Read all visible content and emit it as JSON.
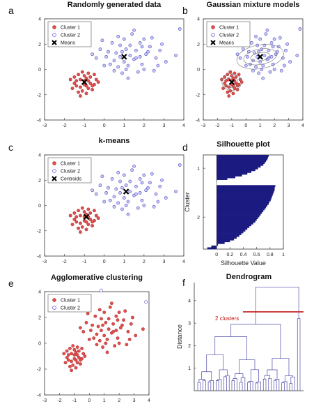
{
  "colors": {
    "cluster1": "#e05050",
    "cluster2": "#5050d0",
    "silhouette_fill": "#1a1a80",
    "cut_line": "#c01818",
    "dendro": "#4a4aa8"
  },
  "chart_data": [
    {
      "type": "scatter",
      "panel_label": "a",
      "title": "Randomly generated data",
      "xlim": [
        -3,
        4
      ],
      "ylim": [
        -4,
        4
      ],
      "xticks": [
        "-3",
        "-2",
        "-1",
        "0",
        "1",
        "2",
        "3",
        "4"
      ],
      "yticks": [
        "-4",
        "-2",
        "0",
        "2",
        "4"
      ],
      "legend": [
        "Cluster 1",
        "Cluster 2",
        "Means"
      ],
      "markers": [
        {
          "x": -1.0,
          "y": -1.0
        },
        {
          "x": 1.0,
          "y": 1.0
        }
      ],
      "series": [
        {
          "name": "Cluster 1",
          "points": [
            [
              -1.2,
              -0.8
            ],
            [
              -0.9,
              -1.3
            ],
            [
              -1.5,
              -1.1
            ],
            [
              -0.7,
              -0.6
            ],
            [
              -1.1,
              -1.7
            ],
            [
              -0.5,
              -1.2
            ],
            [
              -1.3,
              -0.4
            ],
            [
              -0.8,
              -0.9
            ],
            [
              -1.6,
              -1.5
            ],
            [
              -0.6,
              -1.6
            ],
            [
              -1.0,
              -0.5
            ],
            [
              -1.4,
              -0.9
            ],
            [
              -0.9,
              -1.9
            ],
            [
              -0.4,
              -0.8
            ],
            [
              -1.2,
              -1.4
            ],
            [
              -1.7,
              -0.8
            ],
            [
              -0.7,
              -1.1
            ],
            [
              -1.1,
              -0.2
            ],
            [
              -0.8,
              -1.5
            ],
            [
              -1.3,
              -1.8
            ],
            [
              -0.5,
              -0.4
            ],
            [
              -1.0,
              -1.2
            ],
            [
              -1.5,
              -0.6
            ],
            [
              -0.9,
              -0.7
            ],
            [
              -1.2,
              -2.1
            ],
            [
              -0.6,
              -1.3
            ],
            [
              -1.4,
              -1.3
            ],
            [
              -0.3,
              -1.0
            ],
            [
              -1.0,
              -0.9
            ],
            [
              -0.8,
              -0.3
            ]
          ]
        },
        {
          "name": "Cluster 2",
          "points": [
            [
              0.2,
              1.4
            ],
            [
              1.5,
              0.8
            ],
            [
              0.8,
              1.9
            ],
            [
              2.1,
              1.2
            ],
            [
              1.2,
              0.3
            ],
            [
              0.5,
              0.7
            ],
            [
              1.8,
              2.1
            ],
            [
              2.6,
              0.9
            ],
            [
              0.1,
              1.0
            ],
            [
              1.0,
              2.4
            ],
            [
              1.6,
              1.5
            ],
            [
              0.7,
              0.2
            ],
            [
              2.3,
              1.8
            ],
            [
              1.3,
              1.1
            ],
            [
              -0.2,
              1.6
            ],
            [
              0.9,
              -0.3
            ],
            [
              1.9,
              0.4
            ],
            [
              2.8,
              1.5
            ],
            [
              0.4,
              2.1
            ],
            [
              1.1,
              1.6
            ],
            [
              3.1,
              0.6
            ],
            [
              0.6,
              1.3
            ],
            [
              1.7,
              -0.2
            ],
            [
              2.4,
              2.5
            ],
            [
              -0.4,
              0.9
            ],
            [
              1.4,
              2.8
            ],
            [
              2.0,
              0.0
            ],
            [
              0.3,
              0.4
            ],
            [
              1.6,
              0.9
            ],
            [
              0.8,
              1.0
            ],
            [
              2.9,
              2.0
            ],
            [
              1.2,
              -0.7
            ],
            [
              -0.1,
              2.3
            ],
            [
              2.2,
              1.4
            ],
            [
              3.6,
              1.1
            ],
            [
              0.5,
              -0.1
            ],
            [
              1.0,
              0.6
            ],
            [
              1.9,
              1.8
            ],
            [
              3.8,
              3.2
            ],
            [
              0.0,
              0.3
            ],
            [
              2.5,
              -0.1
            ],
            [
              1.5,
              3.1
            ],
            [
              0.7,
              2.6
            ],
            [
              1.8,
              1.0
            ],
            [
              -0.6,
              1.2
            ],
            [
              2.7,
              0.3
            ],
            [
              1.1,
              0.0
            ],
            [
              0.9,
              1.4
            ],
            [
              2.0,
              2.4
            ],
            [
              1.3,
              1.9
            ]
          ]
        }
      ]
    },
    {
      "type": "scatter",
      "panel_label": "b",
      "title": "Gaussian mixture models",
      "xlim": [
        -3,
        4
      ],
      "ylim": [
        -4,
        4
      ],
      "xticks": [
        "-3",
        "-2",
        "-1",
        "0",
        "1",
        "2",
        "3",
        "4"
      ],
      "yticks": [
        "-4",
        "-2",
        "0",
        "2",
        "4"
      ],
      "legend": [
        "Cluster 1",
        "Cluster 2",
        "Means"
      ],
      "markers": [
        {
          "x": -1.0,
          "y": -1.0
        },
        {
          "x": 1.0,
          "y": 1.0
        }
      ],
      "same_points_as": 0
    },
    {
      "type": "scatter",
      "panel_label": "c",
      "title": "k-means",
      "xlim": [
        -3,
        4
      ],
      "ylim": [
        -4,
        4
      ],
      "xticks": [
        "-3",
        "-2",
        "-1",
        "0",
        "1",
        "2",
        "3",
        "4"
      ],
      "yticks": [
        "-4",
        "-2",
        "0",
        "2",
        "4"
      ],
      "legend": [
        "Cluster 1",
        "Cluster 2",
        "Centroids"
      ],
      "markers": [
        {
          "x": -0.9,
          "y": -0.9
        },
        {
          "x": 1.1,
          "y": 1.1
        }
      ],
      "same_points_as": 0
    },
    {
      "type": "bar",
      "panel_label": "d",
      "title": "Silhouette plot",
      "xlabel": "Silhouette Value",
      "ylabel": "Cluster",
      "xlim": [
        -0.2,
        1.0
      ],
      "xticks": [
        "0",
        "0.2",
        "0.4",
        "0.6",
        "0.8",
        "1"
      ],
      "yticks": [
        "1",
        "2"
      ],
      "clusters": [
        {
          "name": "1",
          "values": [
            0.78,
            0.77,
            0.76,
            0.74,
            0.72,
            0.7,
            0.66,
            0.62,
            0.58,
            0.52,
            0.46,
            0.38,
            0.28,
            0.16,
            0.0
          ]
        },
        {
          "name": "2",
          "values": [
            0.88,
            0.87,
            0.87,
            0.86,
            0.85,
            0.84,
            0.83,
            0.82,
            0.81,
            0.79,
            0.78,
            0.76,
            0.74,
            0.72,
            0.7,
            0.68,
            0.66,
            0.64,
            0.62,
            0.6,
            0.58,
            0.55,
            0.52,
            0.49,
            0.46,
            0.43,
            0.4,
            0.37,
            0.34,
            0.3,
            0.26,
            0.2,
            0.12,
            0.02,
            -0.08,
            -0.14
          ]
        }
      ]
    },
    {
      "type": "scatter",
      "panel_label": "e",
      "title": "Agglomerative clustering",
      "xlim": [
        -3,
        4
      ],
      "ylim": [
        -4,
        4
      ],
      "xticks": [
        "-3",
        "-2",
        "-1",
        "0",
        "1",
        "2",
        "3",
        "4"
      ],
      "yticks": [
        "-4",
        "-2",
        "0",
        "2",
        "4"
      ],
      "legend": [
        "Cluster 1",
        "Cluster 2"
      ],
      "same_points_as": 0,
      "cluster2_outliers": [
        [
          0.8,
          4.1
        ],
        [
          3.8,
          3.2
        ]
      ]
    },
    {
      "type": "dendrogram",
      "panel_label": "f",
      "title": "Dendrogram",
      "ylabel": "Distance",
      "yticks": [
        "1",
        "2",
        "3",
        "4"
      ],
      "ylim": [
        0,
        4.8
      ],
      "cut_height": 3.5,
      "annotation": "2 clusters"
    }
  ]
}
